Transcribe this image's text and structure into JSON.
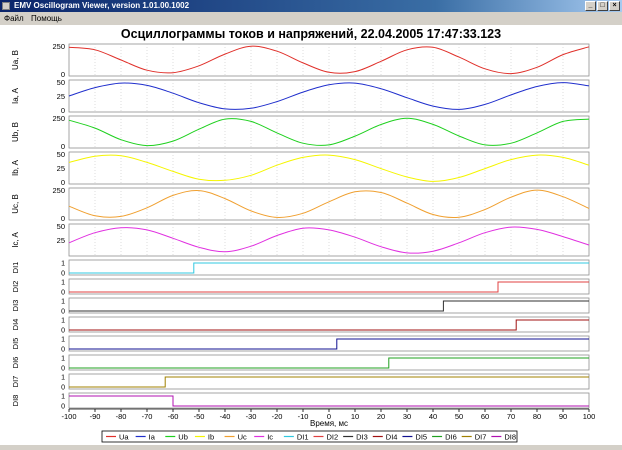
{
  "window": {
    "title": "EMV Oscillogram Viewer, version 1.01.00.1002",
    "buttons": {
      "minimize": "_",
      "maximize": "□",
      "close": "×"
    }
  },
  "menu": {
    "file": "Файл",
    "help": "Помощь"
  },
  "chart_data": {
    "type": "line",
    "title": "Осциллограммы токов и напряжений, 22.04.2005 17:47:33.123",
    "xlabel": "Время, мс",
    "xlim": [
      -100,
      100
    ],
    "x_ticks": [
      -100,
      -90,
      -80,
      -70,
      -60,
      -50,
      -40,
      -30,
      -20,
      -10,
      0,
      10,
      20,
      30,
      40,
      50,
      60,
      70,
      80,
      90,
      100
    ],
    "grid": true,
    "legend_placement": "bottom",
    "analog_panels": [
      {
        "name": "Ua",
        "ylabel": "Ua, В",
        "ylim": [
          0,
          250
        ],
        "yticks": [
          0,
          250
        ],
        "color": "#e0302a",
        "x": [
          -100,
          -90,
          -80,
          -70,
          -60,
          -50,
          -40,
          -30,
          -20,
          -10,
          0,
          10,
          20,
          30,
          40,
          50,
          60,
          70,
          80,
          90,
          100
        ],
        "values": [
          238,
          216,
          125,
          34,
          12,
          73,
          178,
          248,
          204,
          99,
          15,
          21,
          113,
          216,
          238,
          151,
          46,
          4,
          60,
          173,
          243
        ]
      },
      {
        "name": "Ia",
        "ylabel": "Ia, A",
        "ylim": [
          0,
          50
        ],
        "yticks": [
          0,
          25,
          50
        ],
        "color": "#1f2ecc",
        "x": [
          -100,
          -90,
          -80,
          -70,
          -60,
          -50,
          -40,
          -30,
          -20,
          -10,
          0,
          10,
          20,
          30,
          40,
          50,
          60,
          70,
          80,
          90,
          100
        ],
        "values": [
          25,
          40,
          48,
          44,
          30,
          13,
          2,
          3,
          15,
          32,
          45,
          48,
          38,
          22,
          7,
          1,
          10,
          27,
          42,
          49,
          43
        ]
      },
      {
        "name": "Ub",
        "ylabel": "Ub, В",
        "ylim": [
          0,
          250
        ],
        "yticks": [
          0,
          250
        ],
        "color": "#1ed01e",
        "x": [
          -100,
          -90,
          -80,
          -70,
          -60,
          -50,
          -40,
          -30,
          -20,
          -10,
          0,
          10,
          20,
          30,
          40,
          50,
          60,
          70,
          80,
          90,
          100
        ],
        "values": [
          230,
          160,
          56,
          4,
          44,
          150,
          240,
          220,
          117,
          25,
          10,
          88,
          192,
          247,
          193,
          89,
          10,
          25,
          117,
          220,
          240
        ]
      },
      {
        "name": "Ib",
        "ylabel": "Ib, A",
        "ylim": [
          0,
          50
        ],
        "yticks": [
          0,
          25,
          50
        ],
        "color": "#f5f500",
        "x": [
          -100,
          -90,
          -80,
          -70,
          -60,
          -50,
          -40,
          -30,
          -20,
          -10,
          0,
          10,
          20,
          30,
          40,
          50,
          60,
          70,
          80,
          90,
          100
        ],
        "values": [
          35,
          46,
          47,
          35,
          19,
          5,
          3,
          12,
          30,
          44,
          48,
          40,
          24,
          9,
          1,
          8,
          24,
          40,
          48,
          44,
          30
        ]
      },
      {
        "name": "Uc",
        "ylabel": "Uc, В",
        "ylim": [
          0,
          250
        ],
        "yticks": [
          0,
          250
        ],
        "color": "#f0a030",
        "x": [
          -100,
          -90,
          -80,
          -70,
          -60,
          -50,
          -40,
          -30,
          -20,
          -10,
          0,
          10,
          20,
          30,
          40,
          50,
          60,
          70,
          80,
          90,
          100
        ],
        "values": [
          105,
          20,
          14,
          91,
          202,
          245,
          173,
          63,
          5,
          42,
          145,
          234,
          228,
          133,
          31,
          7,
          76,
          186,
          249,
          190,
          85
        ]
      },
      {
        "name": "Ic",
        "ylabel": "Ic, A",
        "ylim": [
          0,
          50
        ],
        "yticks": [
          25,
          50
        ],
        "color": "#e030e0",
        "x": [
          -100,
          -90,
          -80,
          -70,
          -60,
          -50,
          -40,
          -30,
          -20,
          -10,
          0,
          10,
          20,
          30,
          40,
          50,
          60,
          70,
          80,
          90,
          100
        ],
        "values": [
          20,
          38,
          47,
          43,
          28,
          12,
          4,
          14,
          33,
          46,
          43,
          30,
          13,
          2,
          5,
          20,
          38,
          48,
          44,
          31,
          16
        ]
      }
    ],
    "digital_panels": [
      {
        "name": "DI1",
        "ylabel": "DI1",
        "color": "#30c8e0",
        "yticks": [
          0,
          1
        ],
        "x": [
          -100,
          -52,
          100
        ],
        "values": [
          0,
          1,
          1
        ]
      },
      {
        "name": "DI2",
        "ylabel": "DI2",
        "color": "#e04040",
        "yticks": [
          0,
          1
        ],
        "x": [
          -100,
          65,
          100
        ],
        "values": [
          0,
          1,
          1
        ]
      },
      {
        "name": "DI3",
        "ylabel": "DI3",
        "color": "#303030",
        "yticks": [
          0,
          1
        ],
        "x": [
          -100,
          44,
          100
        ],
        "values": [
          0,
          1,
          1
        ]
      },
      {
        "name": "DI4",
        "ylabel": "DI4",
        "color": "#a01010",
        "yticks": [
          0,
          1
        ],
        "x": [
          -100,
          72,
          100
        ],
        "values": [
          0,
          1,
          1
        ]
      },
      {
        "name": "DI5",
        "ylabel": "DI5",
        "color": "#101090",
        "yticks": [
          0,
          1
        ],
        "x": [
          -100,
          3,
          100
        ],
        "values": [
          0,
          1,
          1
        ]
      },
      {
        "name": "DI6",
        "ylabel": "DI6",
        "color": "#20a020",
        "yticks": [
          0,
          1
        ],
        "x": [
          -100,
          23,
          100
        ],
        "values": [
          0,
          1,
          1
        ]
      },
      {
        "name": "DI7",
        "ylabel": "DI7",
        "color": "#a08000",
        "yticks": [
          0,
          1
        ],
        "x": [
          -100,
          -63,
          100
        ],
        "values": [
          0,
          1,
          1
        ]
      },
      {
        "name": "DI8",
        "ylabel": "DI8",
        "color": "#b010b0",
        "yticks": [
          0,
          1
        ],
        "x": [
          -100,
          -60,
          100
        ],
        "values": [
          1,
          0,
          0
        ]
      }
    ],
    "legend": [
      {
        "label": "Ua",
        "color": "#e0302a"
      },
      {
        "label": "Ia",
        "color": "#1f2ecc"
      },
      {
        "label": "Ub",
        "color": "#1ed01e"
      },
      {
        "label": "Ib",
        "color": "#f5f500"
      },
      {
        "label": "Uc",
        "color": "#f0a030"
      },
      {
        "label": "Ic",
        "color": "#e030e0"
      },
      {
        "label": "DI1",
        "color": "#30c8e0"
      },
      {
        "label": "DI2",
        "color": "#e04040"
      },
      {
        "label": "DI3",
        "color": "#303030"
      },
      {
        "label": "DI4",
        "color": "#a01010"
      },
      {
        "label": "DI5",
        "color": "#101090"
      },
      {
        "label": "DI6",
        "color": "#20a020"
      },
      {
        "label": "DI7",
        "color": "#a08000"
      },
      {
        "label": "DI8",
        "color": "#b010b0"
      }
    ]
  }
}
